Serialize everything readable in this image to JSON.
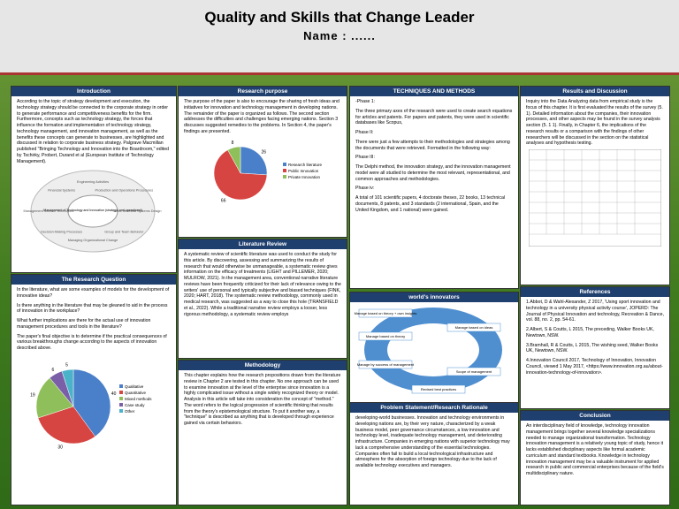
{
  "header": {
    "title": "Quality and Skills that Change Leader",
    "name": "Name : ......"
  },
  "introduction": {
    "heading": "Introduction",
    "text": "According to the topic of strategy development and execution, the technology strategy should be connected to the corporate strategy in order to generate performance and competitiveness benefits for the firm. Furthermore, concepts such as technology strategy, the forces that influence the formation and implementation of technology strategy, technology management, and innovation management, as well as the benefits these concepts can generate to businesses, are highlighted and discussed in relation to corporate business strategy. Palgrave Macmillan published \"Bringing Technology and Innovation into the Boardroom,\" edited by Tschirky, Probert, Durand et al (European Institute of Technology Management).",
    "diagram": {
      "center": "Management of Technology and Innovation (strategic and operational)",
      "items": [
        "Engineering Activities",
        "Production and Operations Procedures",
        "Socio-Technical Systems Design",
        "Group and Team Behavior",
        "Managing Organizational Change",
        "Decision-Making Processes",
        "Management Science Techniques",
        "Financial Systems"
      ]
    }
  },
  "research_question": {
    "heading": "The Research Question",
    "paragraphs": [
      "In the literature, what are some examples of models for the development of innovative ideas?",
      "Is there anything in the literature that may be gleaned to aid in the process of innovation in the workplace?",
      "What further implications are there for the actual use of innovation management procedures and tools in the literature?",
      "The paper's final objective is to determine if the practical consequences of various breakthroughs change according to the aspects of innovation described above."
    ],
    "pie": {
      "labels": [
        "Qualitative",
        "Quantitative",
        "Mixed methods",
        "Case study",
        "Other"
      ],
      "values": [
        40,
        30,
        19,
        6,
        5
      ],
      "colors": [
        "#4a7fc9",
        "#d64541",
        "#8fbf5a",
        "#7a5fa8",
        "#4bb3c9"
      ]
    }
  },
  "research_purpose": {
    "heading": "Research purpose",
    "text": "The purpose of the paper is also to encourage the sharing of fresh ideas and initiatives for innovation and technology management in developing nations. The remainder of the paper is organized as follows. The second section addresses the difficulties and challenges facing emerging nations. Section 3 discusses suggested remedies to the problems. In Section 4, the paper's findings are presented.",
    "pie": {
      "labels": [
        "Research literature",
        "Public Innovation",
        "Private Innovation"
      ],
      "values": [
        26,
        66,
        8
      ],
      "colors": [
        "#4a7fc9",
        "#d64541",
        "#8fbf5a"
      ]
    }
  },
  "literature_review": {
    "heading": "Literature Review",
    "text": "A systematic review of scientific literature was used to conduct the study for this article. By discovering, assessing and summarizing the results of research that would otherwise be unmanageable, a systematic review gives information on the efficacy of treatments (LIGHT and PILLEMER, 2020; MULROW, 2021). In the management area, conventional narrative literature reviews have been frequently criticized for their lack of relevance owing to the writers' use of personal and typically subjective and biased techniques (FINK, 2020; HART, 2018). The systematic review methodology, commonly used in medical research, was suggested as a way to close this hole (TRANSFIELD et al., 2022). While a traditional narrative review employs a looser, less rigorous methodology, a systematic review employs"
  },
  "methodology": {
    "heading": "Methodology",
    "text": "This chapter explains how the research propositions drawn from the literature review in Chapter 2 are tested in this chapter. No one approach can be used to examine innovation at the level of the enterprise since innovation is a highly complicated issue without a single widely recognized theory or model. Analysis in this article will take into consideration the concept of \"method.\" The word refers to the logical progression of scientific thinking that results from the theory's epistemological structure. To put it another way, a \"technique\" is described as anything that is developed through experience gained via certain behaviors."
  },
  "techniques": {
    "heading": "TECHNIQUES AND METHODS",
    "paragraphs": [
      "-Phase 1:",
      "The three primary axes of the research were used to create search equations for articles and patents. For papers and patents, they were used in scientific databases like Scopus,",
      "Phase II:",
      "There were just a few attempts to their methodologies and strategies among the documents that were retrieved. Formatted in the following way:",
      "Phase III:",
      "The Delphi method, the innovation strategy, and the innovation management model were all studied to determine the most relevant, representational, and common approaches and methodologies.",
      "Phase iv:",
      "A total of 101 scientific papers, 4 doctorate theses, 22 books, 13 technical documents, 8 patents, and 3 standards (2 international, Spain, and the United Kingdom, and 1 national) were gained."
    ]
  },
  "innovators": {
    "heading": "world's innovators",
    "labels": [
      "Manage based on theory + own insights",
      "Manage based on ideas",
      "Manage based on theory",
      "Manage by success of management",
      "Scope of management",
      "Revised best practices"
    ]
  },
  "problem": {
    "heading": "Problem Statement/Research Rationale",
    "text": "developing-world businesses. Innovation and technology environments in developing nations are, by their very nature, characterized by a weak business model, peer governance circumstances, a low innovation and technology level, inadequate technology management, and deteriorating infrastructure. Companies in emerging nations with superior technology may lack a comprehensive understanding of the essential technologies. Companies often fail to build a local technological infrastructure and atmosphere for the absorption of foreign technology due to the lack of available technology executives and managers."
  },
  "results": {
    "heading": "Results and Discussion",
    "text": "Inquiry into the Data Analyzing data from empirical study is the focus of this chapter. It is first evaluated the results of the survey (5. 1). Detailed information about the companies, their innovation processes, and other aspects may be found in the survey analysis section (5. 1 1). Finally, in Chapter 6, the implications of the research results or a comparison with the findings of other researchers will be discussed in the section on the statistical analyses and hypothesis testing."
  },
  "references": {
    "heading": "References",
    "items": [
      "1.Abbot, D & Wahl-Alexander, Z 2017, 'Using sport innovation and technology in a university physical activity course', JOPERD: The Journal of Physical Innovation and technology, Recreation & Dance, vol. 88, no. 2, pp. 54-61.",
      "2.Albert, S & Coutts, L 2015, The preceding, Walker Books UK, Newtown, NSW.",
      "3.Bramhall, R & Coutts, L 2015, The wishing seed, Walker Books UK, Newtown, NSW.",
      "4.Innovation Council 2017, Technology of Innovation, Innovation Council, viewed 1 May 2017, <https://www.innovation.org.au/about-innovation-technology-of-innovation>."
    ]
  },
  "conclusion": {
    "heading": "Conclusion",
    "text": "An interdisciplinary field of knowledge, technology innovation management brings together several knowledge specializations needed to manage organizational transformation. Technology innovation management is a relatively young topic of study, hence it lacks established disciplinary aspects like formal academic curriculum and standard textbooks. Knowledge in technology innovation management may be a valuable instrument for applied research in public and commercial enterprises because of the field's multidisciplinary nature."
  }
}
